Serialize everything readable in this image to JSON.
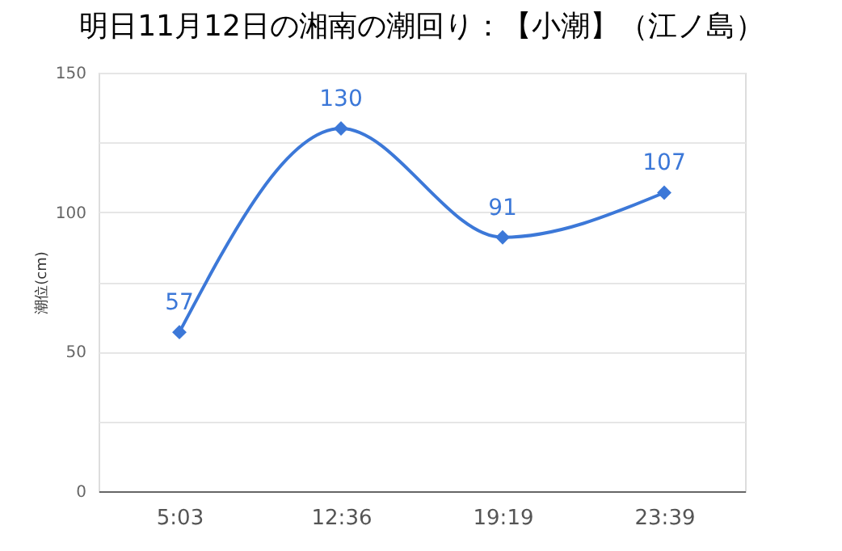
{
  "chart_data": {
    "type": "line",
    "title": "明日11月12日の湘南の潮回り：【小潮】（江ノ島）",
    "ylabel": "潮位(cm)",
    "categories": [
      "5:03",
      "12:36",
      "19:19",
      "23:39"
    ],
    "series": [
      {
        "color": "#3c78d8",
        "values": [
          57,
          130,
          91,
          107
        ]
      }
    ],
    "ylim": [
      0,
      150
    ],
    "yticks": [
      0,
      {
        "value": 25,
        "label": null
      },
      50,
      {
        "value": 75,
        "label": null
      },
      100,
      {
        "value": 125,
        "label": null
      },
      150
    ],
    "grid": "y",
    "marker": "diamond",
    "line_style": "solid",
    "data_labels": true
  }
}
